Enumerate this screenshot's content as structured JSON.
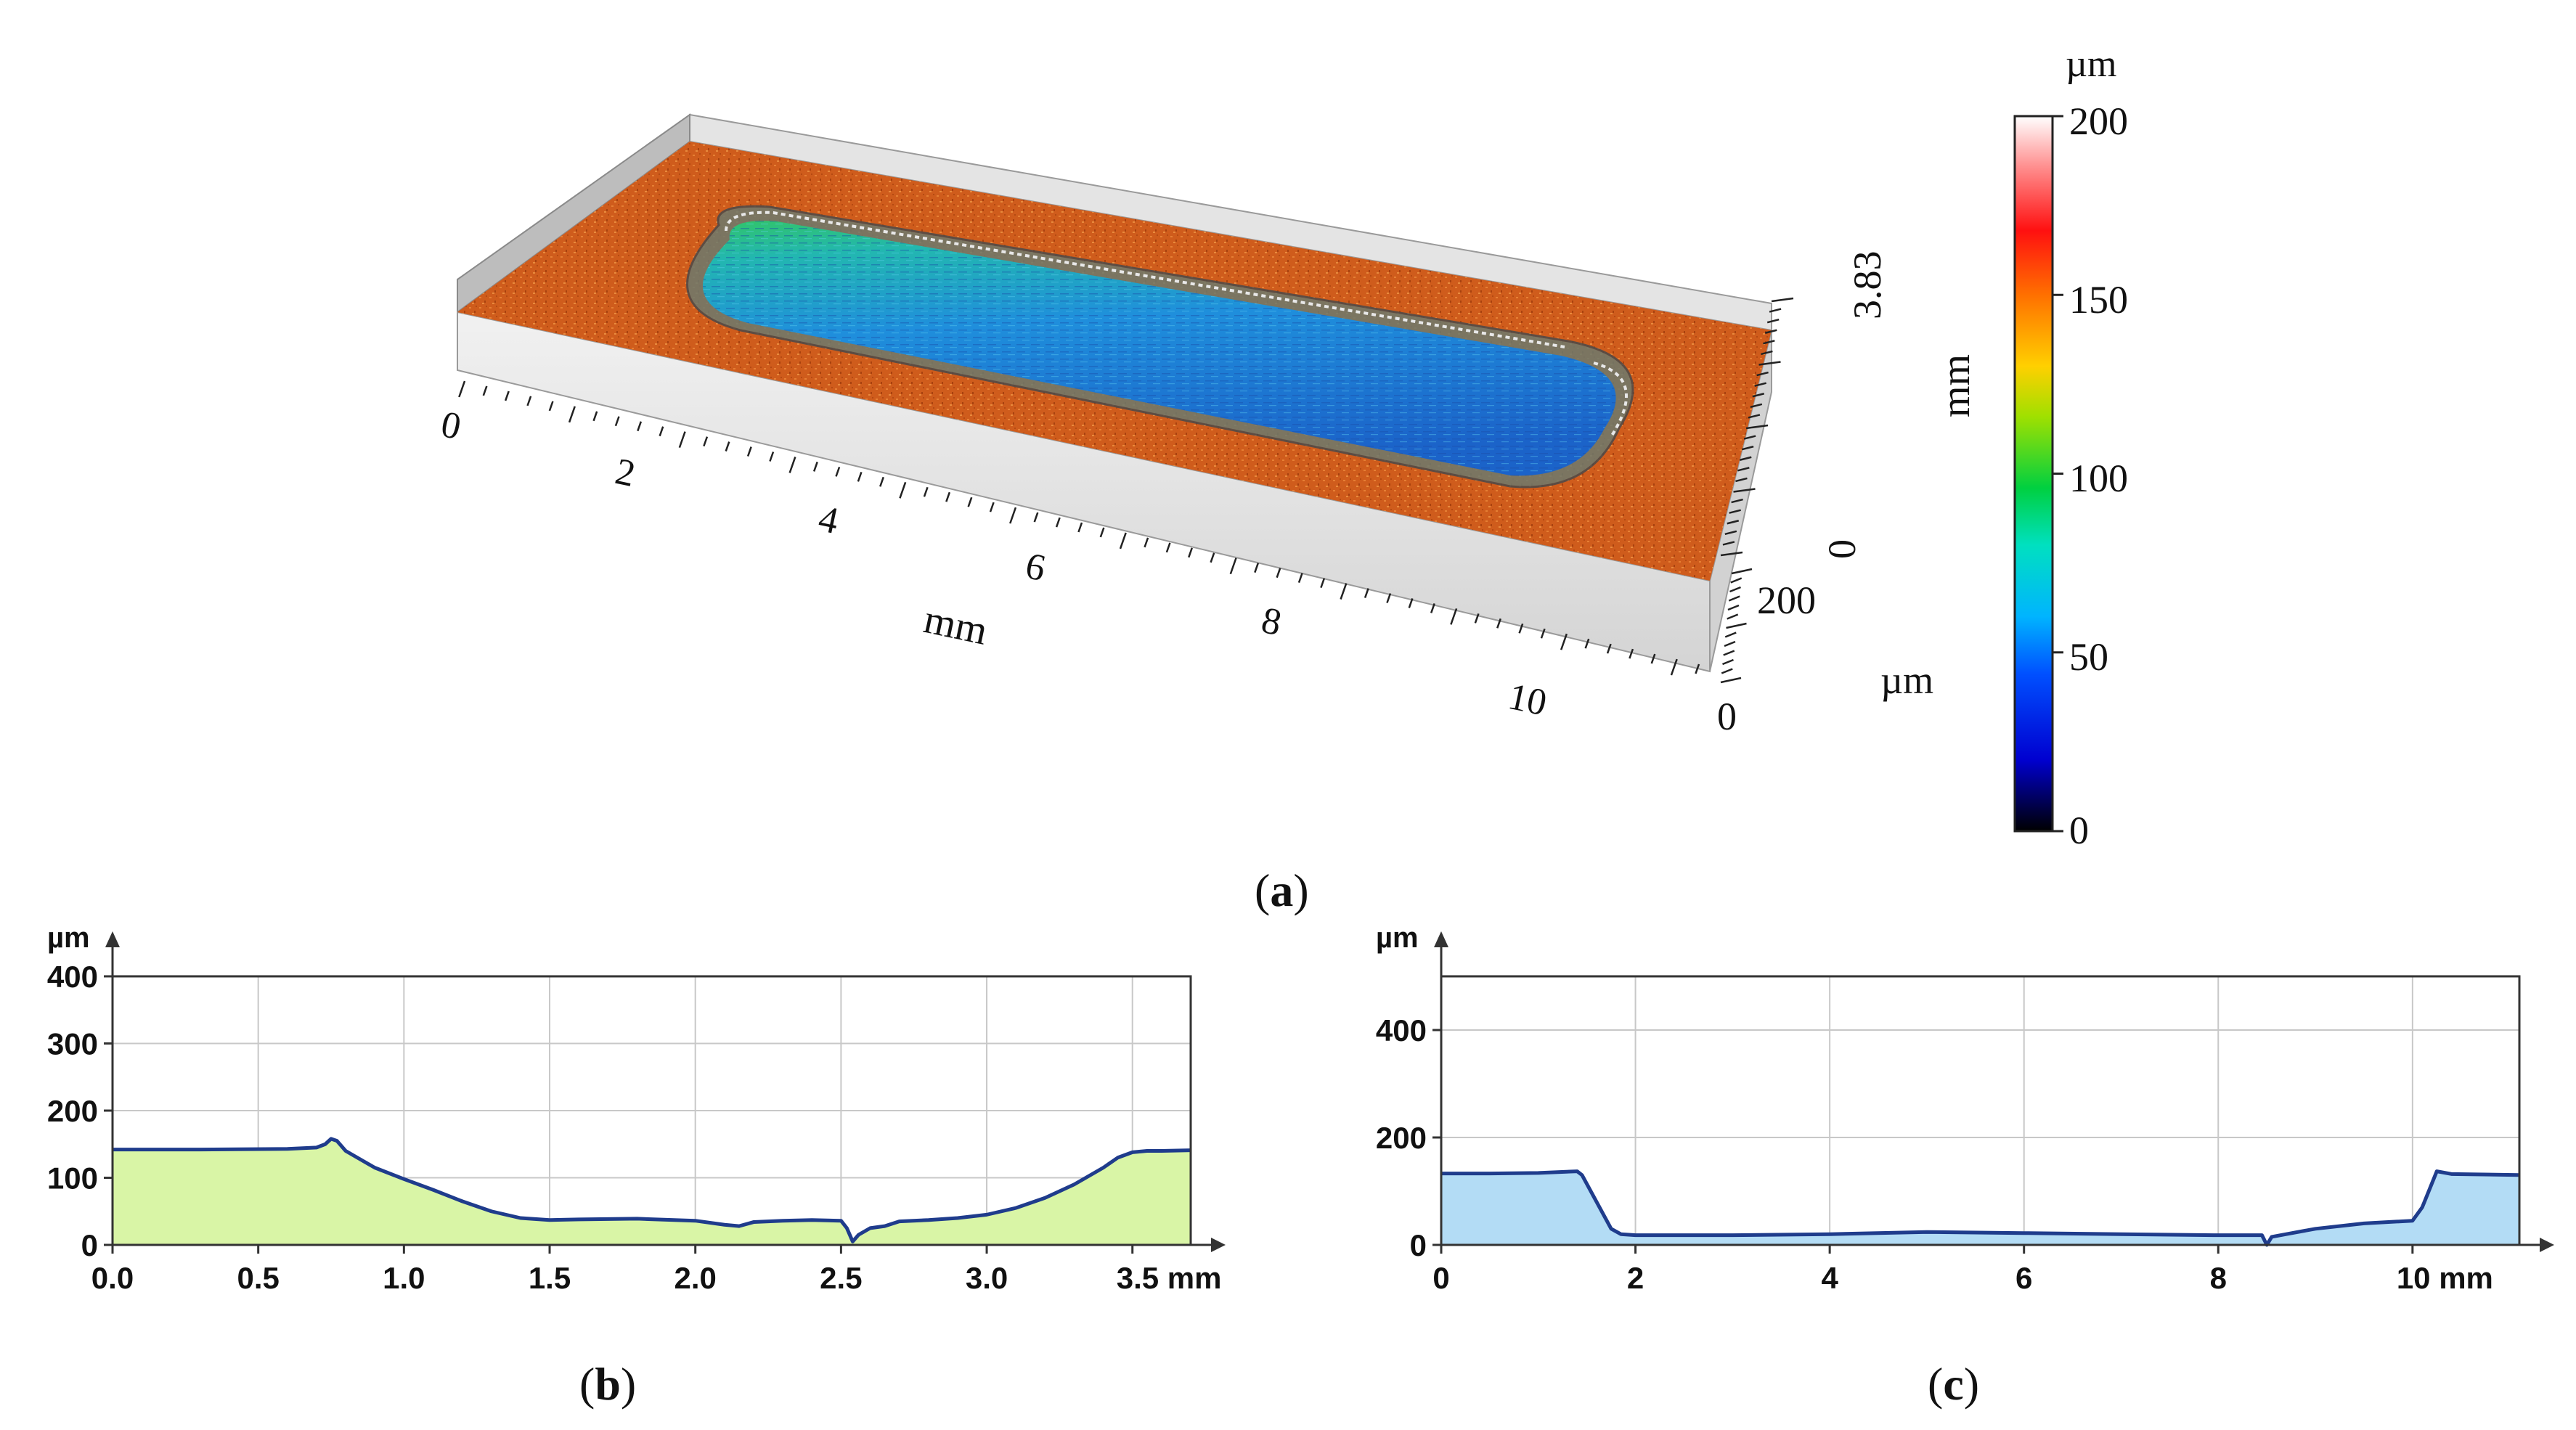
{
  "chart_data": [
    {
      "id": "a",
      "type": "surface3d",
      "caption_letter": "a",
      "description_units": {
        "x": "mm",
        "y": "mm",
        "z": "µm"
      },
      "x_axis": {
        "label": "mm",
        "ticks": [
          "0",
          "2",
          "4",
          "6",
          "8",
          "10"
        ],
        "range": [
          0,
          11
        ]
      },
      "y_axis": {
        "label": "mm",
        "ticks": [
          "0",
          "3.83"
        ],
        "range": [
          0,
          3.83
        ]
      },
      "z_axis": {
        "label": "µm",
        "ticks": [
          "0",
          "200"
        ],
        "range": [
          0,
          200
        ]
      },
      "colorbar": {
        "unit": "µm",
        "ticks": [
          "0",
          "50",
          "100",
          "150",
          "200"
        ],
        "range": [
          0,
          200
        ],
        "colors": [
          "#000000",
          "#0000ff",
          "#00c8ff",
          "#00ff80",
          "#80ff00",
          "#ffff00",
          "#ff8000",
          "#ff0000",
          "#ffffff"
        ]
      },
      "surface_colors": {
        "plate": "#cc5a1e",
        "pocket": "#2d8fd6"
      }
    },
    {
      "id": "b",
      "type": "area",
      "caption_letter": "b",
      "ylabel": "µm",
      "xlabel": "mm",
      "xlim": [
        0,
        3.7
      ],
      "ylim": [
        0,
        400
      ],
      "xticks": [
        "0.0",
        "0.5",
        "1.0",
        "1.5",
        "2.0",
        "2.5",
        "3.0",
        "3.5 mm"
      ],
      "xtick_values": [
        0,
        0.5,
        1.0,
        1.5,
        2.0,
        2.5,
        3.0,
        3.5
      ],
      "yticks": [
        "0",
        "100",
        "200",
        "300",
        "400"
      ],
      "ytick_values": [
        0,
        100,
        200,
        300,
        400
      ],
      "fill_color": "#d9f5a6",
      "line_color": "#1f3c8c",
      "x": [
        0.0,
        0.3,
        0.6,
        0.7,
        0.73,
        0.75,
        0.77,
        0.8,
        0.9,
        1.0,
        1.1,
        1.2,
        1.3,
        1.4,
        1.5,
        1.6,
        1.8,
        2.0,
        2.1,
        2.15,
        2.2,
        2.3,
        2.4,
        2.5,
        2.52,
        2.54,
        2.56,
        2.6,
        2.65,
        2.7,
        2.8,
        2.9,
        3.0,
        3.1,
        3.2,
        3.3,
        3.4,
        3.45,
        3.5,
        3.55,
        3.6,
        3.7
      ],
      "y": [
        142,
        142,
        143,
        145,
        150,
        158,
        155,
        140,
        115,
        98,
        82,
        65,
        50,
        40,
        37,
        38,
        39,
        36,
        30,
        28,
        34,
        36,
        37,
        36,
        25,
        5,
        15,
        25,
        28,
        35,
        37,
        40,
        45,
        55,
        70,
        90,
        115,
        130,
        138,
        140,
        140,
        141
      ]
    },
    {
      "id": "c",
      "type": "area",
      "caption_letter": "c",
      "ylabel": "µm",
      "xlabel": "mm",
      "xlim": [
        0,
        11.1
      ],
      "ylim": [
        0,
        500
      ],
      "xticks": [
        "0",
        "2",
        "4",
        "6",
        "8",
        "10 mm"
      ],
      "xtick_values": [
        0,
        2,
        4,
        6,
        8,
        10
      ],
      "yticks": [
        "0",
        "200",
        "400"
      ],
      "ytick_values": [
        0,
        200,
        400
      ],
      "fill_color": "#b3dcf5",
      "line_color": "#1f3c8c",
      "x": [
        0.0,
        0.5,
        1.0,
        1.4,
        1.45,
        1.6,
        1.75,
        1.85,
        2.0,
        3.0,
        4.0,
        5.0,
        6.0,
        7.0,
        8.0,
        8.45,
        8.5,
        8.55,
        8.7,
        9.0,
        9.5,
        10.0,
        10.1,
        10.25,
        10.4,
        11.1
      ],
      "y": [
        133,
        133,
        134,
        137,
        130,
        80,
        30,
        20,
        18,
        18,
        20,
        24,
        22,
        20,
        18,
        18,
        0,
        15,
        20,
        30,
        40,
        45,
        70,
        137,
        132,
        130
      ]
    }
  ],
  "captions": {
    "a": {
      "open": "(",
      "letter": "a",
      "close": ")"
    },
    "b": {
      "open": "(",
      "letter": "b",
      "close": ")"
    },
    "c": {
      "open": "(",
      "letter": "c",
      "close": ")"
    }
  }
}
